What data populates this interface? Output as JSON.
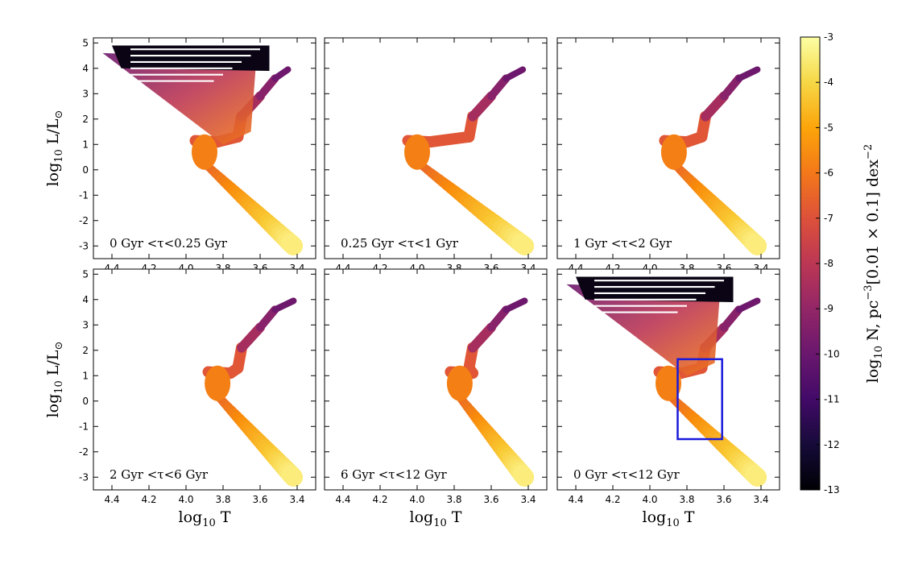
{
  "chart_data": {
    "type": "heatmap",
    "subtype": "Hertzsprung-Russell diagram (stellar number density)",
    "grid": {
      "rows": 2,
      "cols": 3
    },
    "xlabel_parts": [
      "log",
      "10",
      " T"
    ],
    "ylabel_parts": [
      "log",
      "10",
      " L/L",
      "⊙"
    ],
    "xlim": [
      4.5,
      3.3
    ],
    "ylim": [
      -3.5,
      5.2
    ],
    "xticks": [
      "4.4",
      "4.2",
      "4.0",
      "3.8",
      "3.6",
      "3.4"
    ],
    "yticks": [
      "5",
      "4",
      "3",
      "2",
      "1",
      "0",
      "-1",
      "-2",
      "-3"
    ],
    "colorbar": {
      "label": "log10 N, pc^-3 [0.01 × 0.1] dex^-2",
      "label_parts": [
        "log",
        "10",
        " N, pc",
        "−3",
        "[0.01 × 0.1] dex",
        "−2"
      ],
      "range": [
        -13,
        -3
      ],
      "ticks": [
        "-3",
        "-4",
        "-5",
        "-6",
        "-7",
        "-8",
        "-9",
        "-10",
        "-11",
        "-12",
        "-13"
      ],
      "colormap": "inferno"
    },
    "panels": [
      {
        "label": "0 Gyr <τ<0.25 Gyr",
        "upper_ms": true,
        "turnoff_logT": 3.95,
        "rgb_top_logT": 3.45,
        "highlight_box": null
      },
      {
        "label": "0.25 Gyr <τ<1 Gyr",
        "upper_ms": false,
        "turnoff_logT": 4.05,
        "rgb_top_logT": 3.43,
        "highlight_box": null
      },
      {
        "label": "1 Gyr <τ<2 Gyr",
        "upper_ms": false,
        "turnoff_logT": 3.92,
        "rgb_top_logT": 3.42,
        "highlight_box": null
      },
      {
        "label": "2 Gyr <τ<6 Gyr",
        "upper_ms": false,
        "turnoff_logT": 3.88,
        "rgb_top_logT": 3.42,
        "highlight_box": null
      },
      {
        "label": "6 Gyr <τ<12 Gyr",
        "upper_ms": false,
        "turnoff_logT": 3.82,
        "rgb_top_logT": 3.42,
        "highlight_box": null
      },
      {
        "label": "0 Gyr <τ<12 Gyr",
        "upper_ms": true,
        "turnoff_logT": 3.95,
        "rgb_top_logT": 3.42,
        "highlight_box": {
          "x": [
            3.85,
            3.61
          ],
          "y": [
            -1.5,
            1.65
          ],
          "color": "#1a1adc"
        }
      }
    ]
  }
}
